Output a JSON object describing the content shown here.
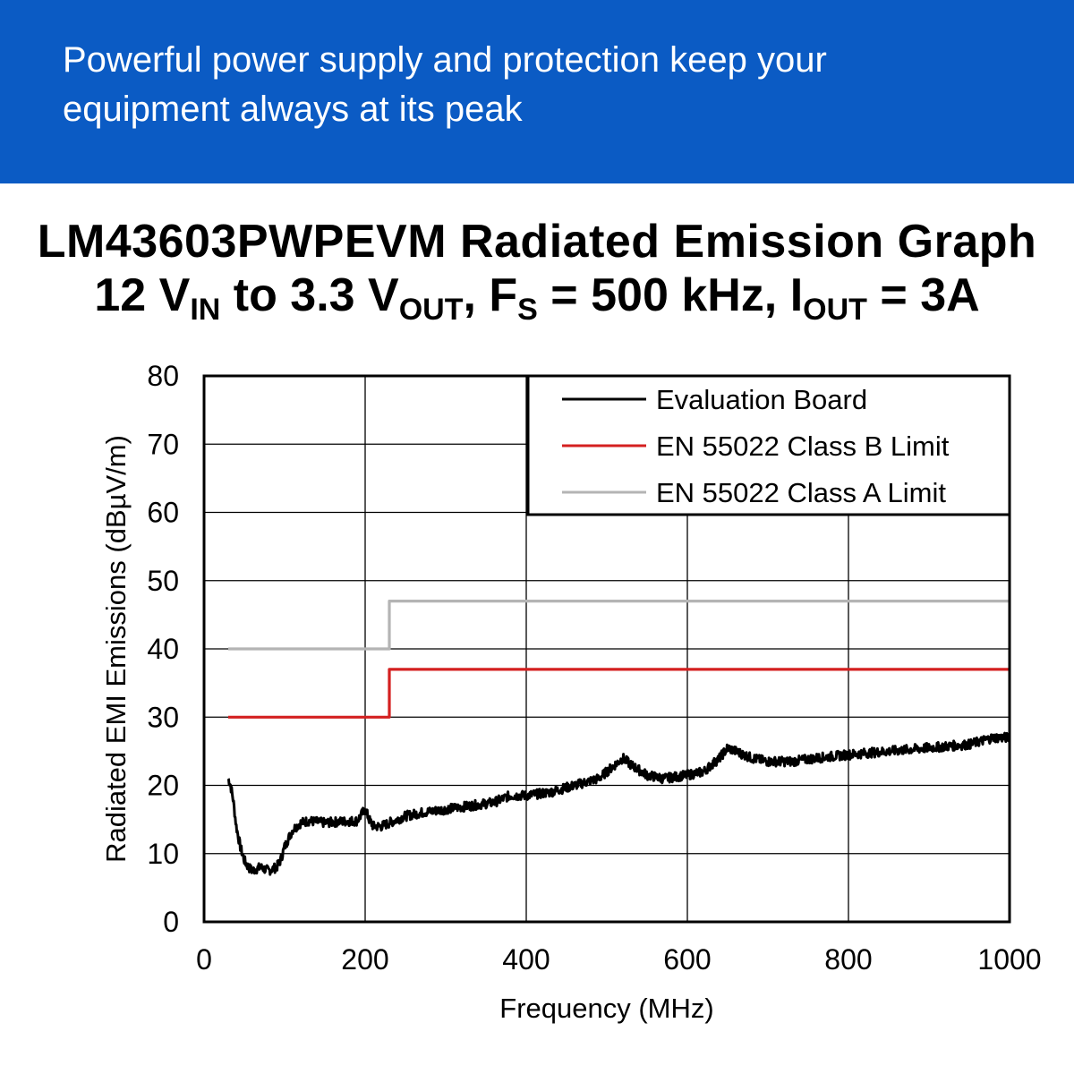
{
  "banner": {
    "text": "Powerful power supply and protection keep your equipment always at its peak"
  },
  "title": {
    "line1": "LM43603PWPEVM Radiated Emission Graph",
    "line2": {
      "p1": "12 V",
      "p1_sub": "IN",
      "p2": " to 3.3 V",
      "p2_sub": "OUT",
      "p3": ", F",
      "p3_sub": "S",
      "p4": " = 500 kHz, I",
      "p4_sub": "OUT",
      "p5": " = 3A"
    }
  },
  "colors": {
    "banner": "#0b5bc4",
    "evaluation_board": "#000000",
    "class_b": "#d42020",
    "class_a": "#b4b4b4",
    "grid": "#000000"
  },
  "chart_data": {
    "type": "line",
    "title": "LM43603PWPEVM Radiated Emission Graph",
    "xlabel": "Frequency (MHz)",
    "ylabel": "Radiated EMI Emissions (dBµV/m)",
    "xlim": [
      0,
      1000
    ],
    "ylim": [
      0,
      80
    ],
    "xticks": [
      0,
      200,
      400,
      600,
      800,
      1000
    ],
    "yticks": [
      0,
      10,
      20,
      30,
      40,
      50,
      60,
      70,
      80
    ],
    "grid": true,
    "legend_position": "top-right",
    "series": [
      {
        "name": "Evaluation Board",
        "color": "#000000",
        "x": [
          30,
          33,
          36,
          40,
          45,
          50,
          55,
          60,
          70,
          80,
          90,
          95,
          100,
          110,
          120,
          130,
          150,
          170,
          190,
          200,
          205,
          210,
          220,
          230,
          240,
          250,
          270,
          300,
          330,
          360,
          380,
          400,
          430,
          460,
          490,
          510,
          520,
          530,
          550,
          570,
          600,
          620,
          640,
          650,
          660,
          680,
          700,
          730,
          760,
          800,
          850,
          900,
          950,
          980,
          1000
        ],
        "y": [
          21,
          20,
          18,
          14,
          11,
          9,
          8,
          7.5,
          8,
          7.5,
          8,
          9,
          11,
          13.5,
          14.5,
          14.8,
          14.5,
          14.7,
          14.8,
          16.5,
          15,
          14,
          14,
          14.5,
          15,
          15.5,
          16,
          16.5,
          17,
          17.5,
          18.5,
          18.5,
          19,
          20,
          21,
          23,
          24,
          23,
          21.5,
          21,
          21.5,
          22,
          24,
          25.5,
          25,
          24,
          23.5,
          23.5,
          24,
          24.5,
          25,
          25.5,
          26,
          27,
          27
        ]
      },
      {
        "name": "EN 55022 Class B Limit",
        "color": "#d42020",
        "x": [
          30,
          230,
          230,
          1000
        ],
        "y": [
          30,
          30,
          37,
          37
        ]
      },
      {
        "name": "EN 55022 Class A Limit",
        "color": "#b4b4b4",
        "x": [
          30,
          230,
          230,
          1000
        ],
        "y": [
          40,
          40,
          47,
          47
        ]
      }
    ]
  }
}
